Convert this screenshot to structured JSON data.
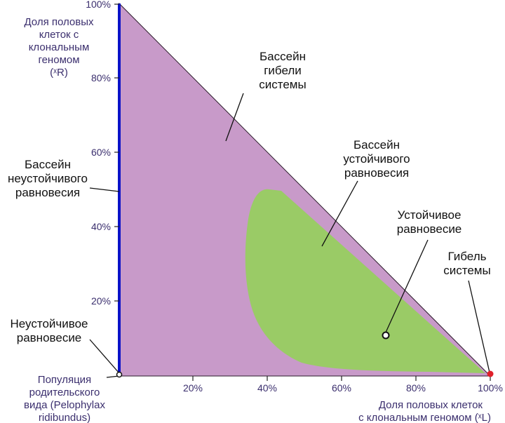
{
  "y_axis": {
    "title_lines": [
      "Доля половых",
      "клеток  с",
      "клональным",
      "геномом",
      "(ˣR)"
    ],
    "ticks": [
      "100%",
      "80%",
      "60%",
      "40%",
      "20%"
    ]
  },
  "x_axis": {
    "title_lines": [
      "Доля половых клеток",
      "с клональным геномом (ˣL)"
    ],
    "ticks": [
      "20%",
      "40%",
      "60%",
      "80%",
      "100%"
    ]
  },
  "labels": {
    "basin_death": [
      "Бассейн",
      "гибели",
      "системы"
    ],
    "basin_stable": [
      "Бассейн",
      "устойчивого",
      "равновесия"
    ],
    "stable_eq": [
      "Устойчивое",
      "равновесие"
    ],
    "death": [
      "Гибель",
      "системы"
    ],
    "basin_unstable": [
      "Бассейн",
      "неустойчивого",
      "равновесия"
    ],
    "unstable_eq": [
      "Неустойчивое",
      "равновесие"
    ],
    "parent_population": [
      "Популяция",
      "родительского",
      "вида (Pelophylax",
      "ridibundus)"
    ]
  },
  "colors": {
    "basin_death": "#c89ac9",
    "basin_stable": "#9acb66",
    "unstable_edge": "#0a12c8",
    "death_point": "#e0202a",
    "text": "#111111",
    "axis_text": "#3b2f6e"
  },
  "chart_data": {
    "type": "phase-diagram",
    "x_label": "Доля половых клеток с клональным геномом (ˣL)",
    "y_label": "Доля половых клеток  с клональным геномом (ˣR)",
    "xlim": [
      0,
      100
    ],
    "ylim": [
      0,
      100
    ],
    "x_ticks": [
      20,
      40,
      60,
      80,
      100
    ],
    "y_ticks": [
      20,
      40,
      60,
      80,
      100
    ],
    "stable_equilibrium": {
      "x": 71.9,
      "y": 10.8
    },
    "death_point": {
      "x": 100,
      "y": 0
    },
    "unstable_equilibrium": {
      "x": 0,
      "y": 0
    }
  }
}
